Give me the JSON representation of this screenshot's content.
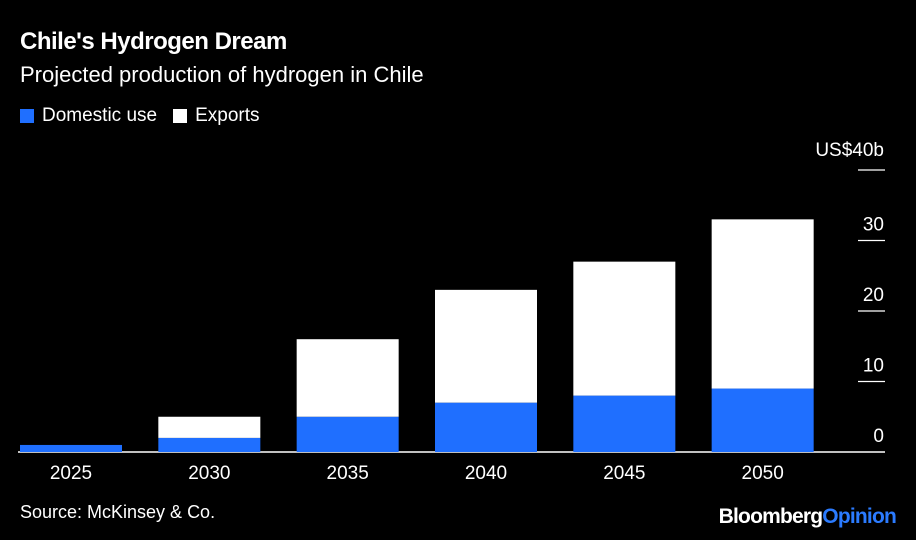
{
  "header": {
    "title": "Chile's Hydrogen Dream",
    "subtitle": "Projected production of hydrogen in Chile"
  },
  "legend": {
    "domestic_label": "Domestic use",
    "exports_label": "Exports"
  },
  "footer": {
    "source": "Source: McKinsey & Co.",
    "brand_part1": "Bloomberg",
    "brand_part2": "Opinion"
  },
  "colors": {
    "background": "#000000",
    "domestic": "#1f6fff",
    "exports": "#ffffff",
    "text": "#ffffff"
  },
  "chart_data": {
    "type": "bar",
    "stacked": true,
    "title": "Chile's Hydrogen Dream",
    "subtitle": "Projected production of hydrogen in Chile",
    "categories": [
      "2025",
      "2030",
      "2035",
      "2040",
      "2045",
      "2050"
    ],
    "series": [
      {
        "name": "Domestic use",
        "values": [
          1,
          2,
          5,
          7,
          8,
          9
        ]
      },
      {
        "name": "Exports",
        "values": [
          0,
          3,
          11,
          16,
          19,
          24
        ]
      }
    ],
    "y_unit_label": "US$40b",
    "y_ticks": [
      0,
      10,
      20,
      30,
      40
    ],
    "y_tick_labels": [
      "0",
      "10",
      "20",
      "30",
      "US$40b"
    ],
    "ylim": [
      0,
      40
    ],
    "grid": false,
    "legend_position": "top-left"
  }
}
